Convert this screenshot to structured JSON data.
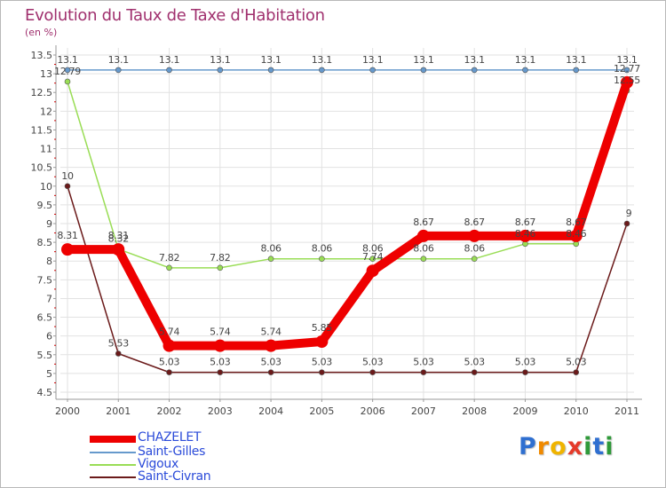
{
  "title": "Evolution du Taux de Taxe d'Habitation",
  "subtitle": "(en %)",
  "colors": {
    "title": "#a0306e",
    "axis": "#999999",
    "grid": "#e2e2e2",
    "legend_text": "#2b4bd9",
    "tick_red": "#cc0000"
  },
  "logo": {
    "letters": [
      "P",
      "r",
      "o",
      "x",
      "i",
      "t",
      "i"
    ],
    "colors": [
      "#2f6fd0",
      "#f08a00",
      "#f0b400",
      "#e53a2a",
      "#2f9a3a",
      "#2f6fd0",
      "#2f9a3a"
    ]
  },
  "chart_data": {
    "type": "line",
    "title": "Evolution du Taux de Taxe d'Habitation",
    "ylabel": "(en %)",
    "xlabel": "",
    "categories": [
      "2000",
      "2001",
      "2002",
      "2003",
      "2004",
      "2005",
      "2006",
      "2007",
      "2008",
      "2009",
      "2010",
      "2011"
    ],
    "ylim": [
      4.5,
      13.5
    ],
    "yticks": [
      "4.5",
      "5",
      "5.5",
      "6",
      "6.5",
      "7",
      "7.5",
      "8",
      "8.5",
      "9",
      "9.5",
      "10",
      "10.5",
      "11",
      "11.5",
      "12",
      "12.5",
      "13",
      "13.5"
    ],
    "grid": true,
    "legend_position": "bottom-left",
    "series": [
      {
        "name": "CHAZELET",
        "color": "#ee0000",
        "values": [
          8.31,
          8.31,
          5.74,
          5.74,
          5.74,
          5.85,
          7.74,
          8.67,
          8.67,
          8.67,
          8.67,
          12.77
        ],
        "labels": [
          "8.31",
          "8.31",
          "5.74",
          "5.74",
          "5.74",
          "5.85",
          "7.74",
          "8.67",
          "8.67",
          "8.67",
          "8.67",
          "12.77"
        ]
      },
      {
        "name": "Saint-Gilles",
        "color": "#6699cc",
        "values": [
          13.1,
          13.1,
          13.1,
          13.1,
          13.1,
          13.1,
          13.1,
          13.1,
          13.1,
          13.1,
          13.1,
          13.1
        ],
        "labels": [
          "13.1",
          "13.1",
          "13.1",
          "13.1",
          "13.1",
          "13.1",
          "13.1",
          "13.1",
          "13.1",
          "13.1",
          "13.1",
          "13.1"
        ]
      },
      {
        "name": "Vigoux",
        "color": "#99dd55",
        "values": [
          12.79,
          8.32,
          7.82,
          7.82,
          8.06,
          8.06,
          8.06,
          8.06,
          8.06,
          8.46,
          8.46,
          12.55
        ],
        "labels": [
          "12.79",
          "8.32",
          "7.82",
          "7.82",
          "8.06",
          "8.06",
          "8.06",
          "8.06",
          "8.06",
          "8.46",
          "8.46",
          "12.55"
        ]
      },
      {
        "name": "Saint-Civran",
        "color": "#6b1a1a",
        "values": [
          10,
          5.53,
          5.03,
          5.03,
          5.03,
          5.03,
          5.03,
          5.03,
          5.03,
          5.03,
          5.03,
          9
        ],
        "labels": [
          "10",
          "5.53",
          "5.03",
          "5.03",
          "5.03",
          "5.03",
          "5.03",
          "5.03",
          "5.03",
          "5.03",
          "5.03",
          "9"
        ]
      }
    ]
  }
}
